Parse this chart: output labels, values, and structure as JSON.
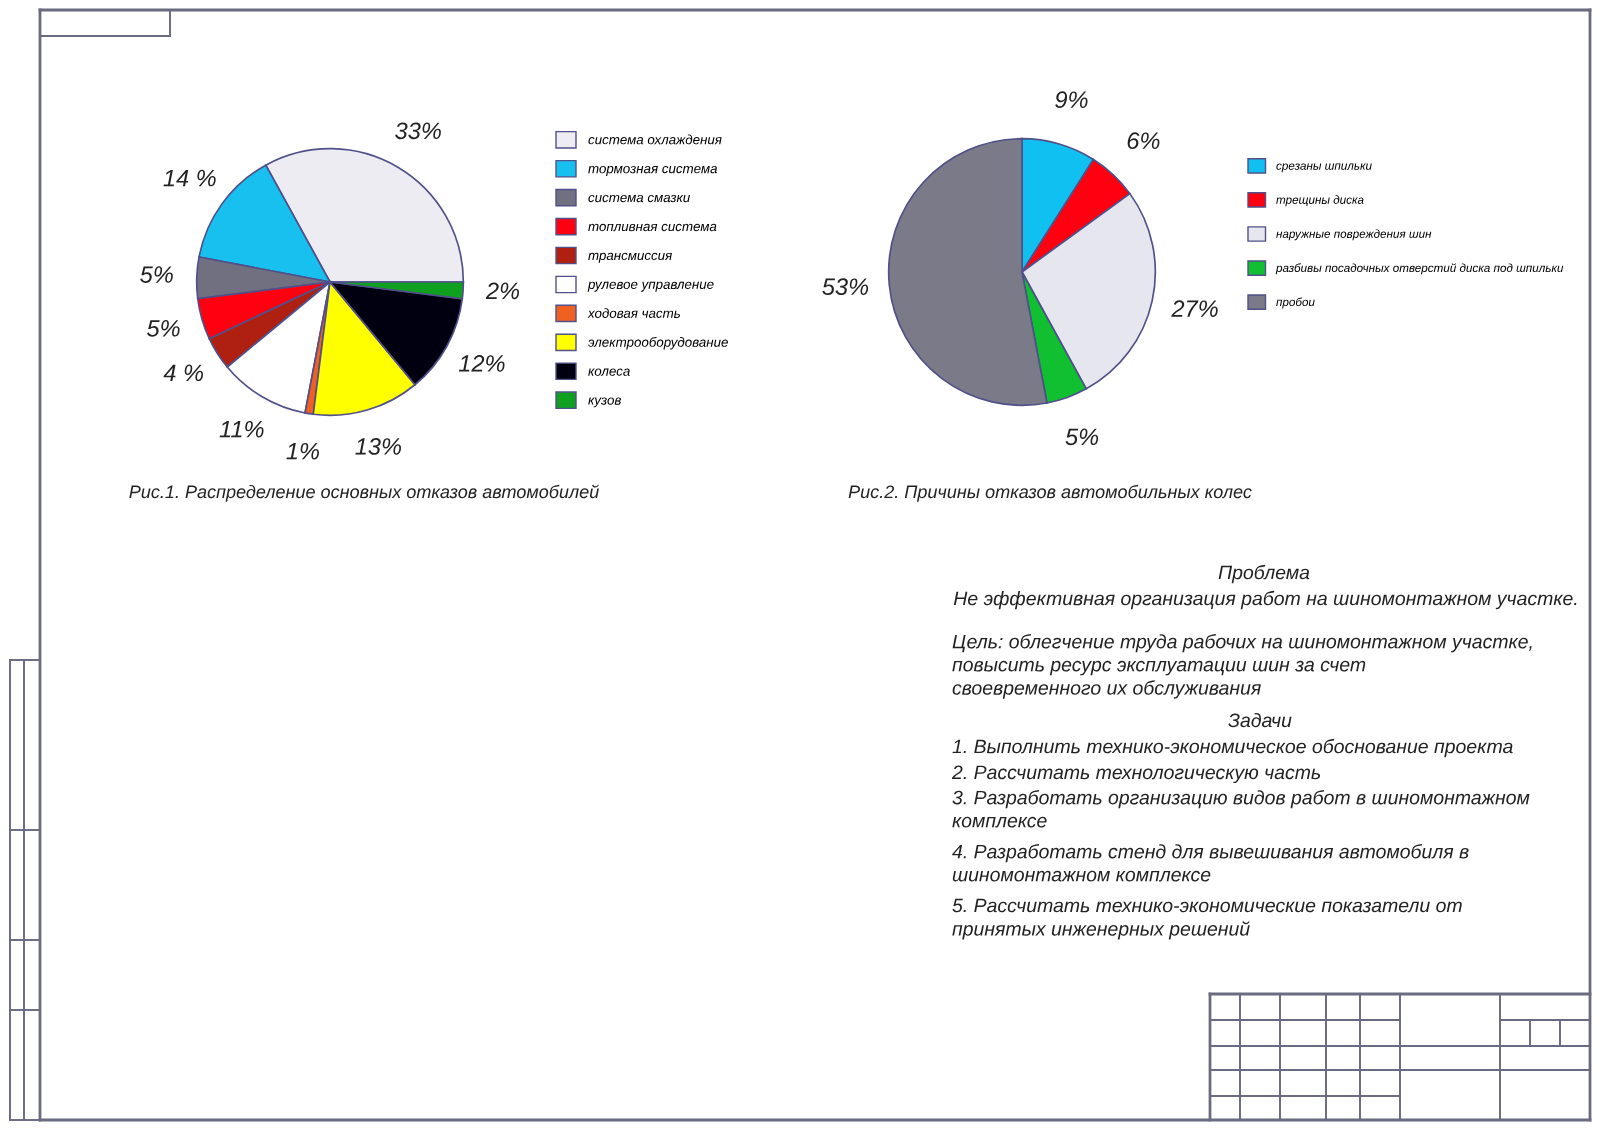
{
  "chart_data": [
    {
      "type": "pie",
      "title": "Рис.1. Распределение основных отказов автомобилей",
      "categories": [
        "система охлаждения",
        "тормозная система",
        "система смазки",
        "топливная система",
        "трансмиссия",
        "рулевое управление",
        "ходовая часть",
        "электрооборудование",
        "колеса",
        "кузов"
      ],
      "values": [
        33,
        14,
        5,
        5,
        4,
        11,
        1,
        13,
        12,
        2
      ],
      "value_labels": [
        "33%",
        "14 %",
        "5%",
        "5%",
        "4 %",
        "11%",
        "1%",
        "13%",
        "12%",
        "2%"
      ],
      "colors": [
        "#ececf2",
        "#18c0f0",
        "#707080",
        "#ff0010",
        "#b02010",
        "#ffffff",
        "#f06020",
        "#ffff00",
        "#000010",
        "#10a020"
      ],
      "legend": "right"
    },
    {
      "type": "pie",
      "title": "Рис.2. Причины отказов автомобильных колес",
      "categories": [
        "срезаны шпильки",
        "трещины диска",
        "наружные повреждения шин",
        "разбивы посадочных отверстий диска под шпильки",
        "пробои"
      ],
      "values": [
        9,
        6,
        27,
        5,
        53
      ],
      "value_labels": [
        "9%",
        "6%",
        "27%",
        "5%",
        "53%"
      ],
      "colors": [
        "#10c0f0",
        "#ff0010",
        "#e6e6ee",
        "#10c030",
        "#7a7a88"
      ],
      "legend": "right"
    },
    {
      "type": "other",
      "title": "Проблема",
      "annotations": [
        "Не эффективная организация работ на шиномонтажном участке.",
        "Цель: облегчение труда рабочих на шиномонтажном участке,\nповысить ресурс эксплуатации шин за счет\nсвоевременного их обслуживания",
        "Задачи",
        "1. Выполнить технико-экономическое обоснование проекта",
        "2. Рассчитать технологическую часть",
        "3. Разработать организацию видов работ в шиномонтажном\nкомплексе",
        "4. Разработать стенд для вывешивания автомобиля в\nшиномонтажном комплексе",
        "5. Рассчитать технико-экономические показатели от\nпринятых инженерных решений"
      ]
    }
  ]
}
